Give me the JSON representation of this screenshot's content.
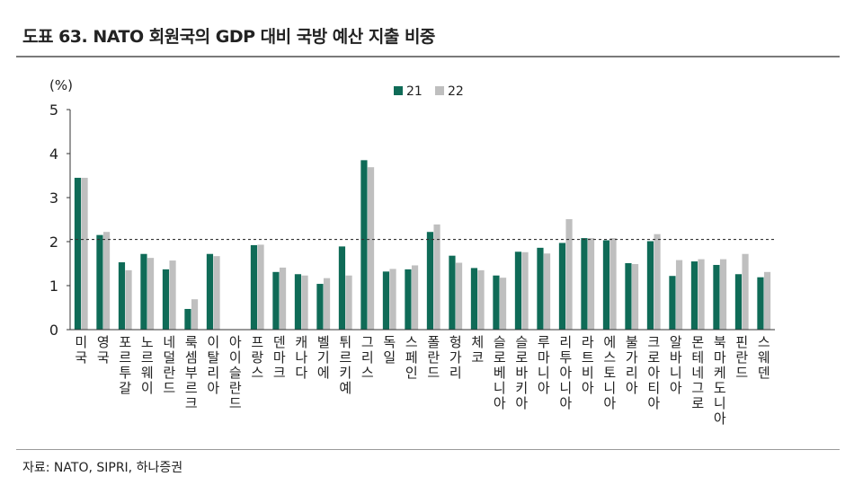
{
  "title": "도표 63. NATO 회원국의 GDP 대비 국방 예산 지출 비중",
  "source": "자료: NATO, SIPRI, 하나증권",
  "colors": {
    "series21": "#0f6b57",
    "series22": "#bfbfbf",
    "reference_line": "#333333",
    "axis": "#333333"
  },
  "chart_data": {
    "type": "bar",
    "unit_label": "(%)",
    "ylim": [
      0,
      5
    ],
    "yticks": [
      "0",
      "1",
      "2",
      "3",
      "4",
      "5"
    ],
    "grid": false,
    "legend_position": "top-center",
    "reference_line": 2.05,
    "categories": [
      "미국",
      "영국",
      "포르투갈",
      "노르웨이",
      "네덜란드",
      "룩셈부르크",
      "이탈리아",
      "아이슬란드",
      "프랑스",
      "덴마크",
      "캐나다",
      "벨기에",
      "튀르키예",
      "그리스",
      "독일",
      "스페인",
      "폴란드",
      "헝가리",
      "체코",
      "슬로베니아",
      "슬로바키아",
      "루마니아",
      "리투아니아",
      "라트비아",
      "에스토니아",
      "불가리아",
      "크로아티아",
      "알바니아",
      "몬테네그로",
      "북마케도니아",
      "핀란드",
      "스웨덴"
    ],
    "series": [
      {
        "name": "21",
        "values": [
          3.45,
          2.15,
          1.53,
          1.72,
          1.37,
          0.47,
          1.72,
          0.0,
          1.92,
          1.31,
          1.26,
          1.04,
          1.89,
          3.85,
          1.32,
          1.37,
          2.22,
          1.68,
          1.4,
          1.23,
          1.77,
          1.86,
          1.97,
          2.08,
          2.03,
          1.51,
          2.01,
          1.22,
          1.55,
          1.47,
          1.26,
          1.19
        ]
      },
      {
        "name": "22",
        "values": [
          3.45,
          2.22,
          1.35,
          1.63,
          1.57,
          0.69,
          1.67,
          0.0,
          1.93,
          1.41,
          1.23,
          1.17,
          1.23,
          3.69,
          1.38,
          1.46,
          2.39,
          1.52,
          1.35,
          1.18,
          1.76,
          1.73,
          2.51,
          2.08,
          2.08,
          1.49,
          2.17,
          1.58,
          1.6,
          1.6,
          1.72,
          1.31
        ]
      }
    ]
  }
}
